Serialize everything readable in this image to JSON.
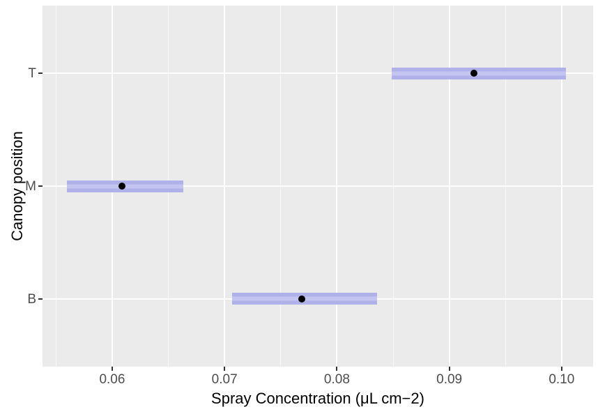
{
  "figure": {
    "background": "#ffffff",
    "panel_background": "#ebebeb",
    "gridline_color": "#ffffff",
    "bar_color": "#b1b1e9",
    "bar_stripe_color": "#c4c4f1",
    "point_color": "#000000",
    "tick_label_color": "#4d4d4d",
    "axis_title_color": "#000000",
    "tick_mark_color": "#333333"
  },
  "chart_data": {
    "type": "interval",
    "subtype": "horizontal-confidence-interval-bars-with-point-estimates",
    "theme": "ggplot-gray",
    "title": "",
    "xlabel": "Spray Concentration (μL cm−2)",
    "ylabel": "Canopy position",
    "categories": [
      "B",
      "M",
      "T"
    ],
    "points": [
      {
        "category": "B",
        "estimate": 0.0769,
        "ci_lower": 0.0707,
        "ci_upper": 0.0836
      },
      {
        "category": "M",
        "estimate": 0.0609,
        "ci_lower": 0.056,
        "ci_upper": 0.0663
      },
      {
        "category": "T",
        "estimate": 0.0922,
        "ci_lower": 0.0849,
        "ci_upper": 0.1004
      }
    ],
    "x_ticks": [
      0.06,
      0.07,
      0.08,
      0.09,
      0.1
    ],
    "x_tick_labels": [
      "0.06",
      "0.07",
      "0.08",
      "0.09",
      "0.10"
    ],
    "x_minor_ticks": [
      0.055,
      0.065,
      0.075,
      0.085,
      0.095
    ],
    "xlim": [
      0.0538,
      0.1028
    ],
    "y_positions": {
      "B": 1,
      "M": 2,
      "T": 3
    },
    "ylim": [
      0.4,
      3.6
    ],
    "grid": true,
    "legend_position": "none"
  }
}
